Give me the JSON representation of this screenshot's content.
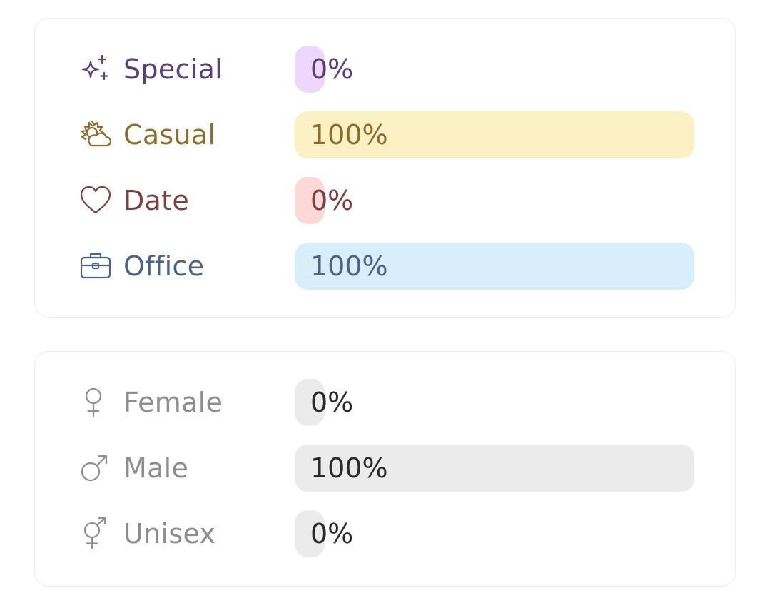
{
  "occasion": {
    "rows": [
      {
        "label": "Special",
        "percent_label": "0%",
        "value": 0,
        "text_color": "#5b3f78",
        "fill_color": "#efd6fd",
        "icon": "sparkles-icon"
      },
      {
        "label": "Casual",
        "percent_label": "100%",
        "value": 100,
        "text_color": "#8c6d2e",
        "fill_color": "#fbf1c4",
        "icon": "sun-cloud-icon"
      },
      {
        "label": "Date",
        "percent_label": "0%",
        "value": 0,
        "text_color": "#7c4040",
        "fill_color": "#fdd8d8",
        "icon": "heart-icon"
      },
      {
        "label": "Office",
        "percent_label": "100%",
        "value": 100,
        "text_color": "#4c6585",
        "fill_color": "#d8eefb",
        "icon": "briefcase-icon"
      }
    ]
  },
  "gender": {
    "rows": [
      {
        "label": "Female",
        "percent_label": "0%",
        "value": 0,
        "text_color": "#8e8e8e",
        "value_color": "#2a2a2a",
        "fill_color": "#ebebeb",
        "icon": "female-icon"
      },
      {
        "label": "Male",
        "percent_label": "100%",
        "value": 100,
        "text_color": "#8e8e8e",
        "value_color": "#2a2a2a",
        "fill_color": "#ebebeb",
        "icon": "male-icon"
      },
      {
        "label": "Unisex",
        "percent_label": "0%",
        "value": 0,
        "text_color": "#8e8e8e",
        "value_color": "#2a2a2a",
        "fill_color": "#ebebeb",
        "icon": "unisex-icon"
      }
    ]
  }
}
